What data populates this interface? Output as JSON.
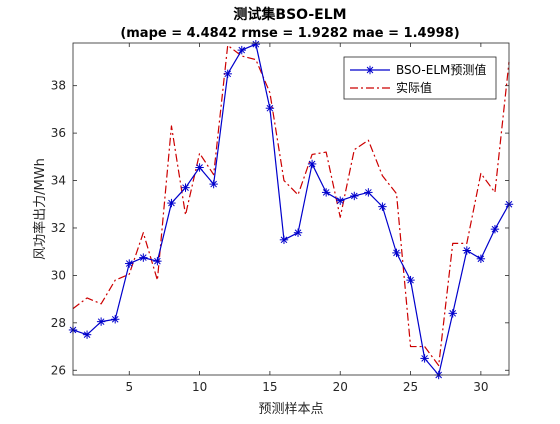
{
  "chart_data": {
    "type": "line",
    "title": "测试集BSO-ELM",
    "subtitle": "(mape = 4.4842 rmse = 1.9282 mae = 1.4998)",
    "xlabel": "预测样本点",
    "ylabel": "风功率出力/MWh",
    "xlim": [
      1,
      32
    ],
    "ylim": [
      25.8,
      39.8
    ],
    "xticks": [
      5,
      10,
      15,
      20,
      25,
      30
    ],
    "yticks": [
      26,
      28,
      30,
      32,
      34,
      36,
      38
    ],
    "grid": false,
    "legend_position": "top-right",
    "x": [
      1,
      2,
      3,
      4,
      5,
      6,
      7,
      8,
      9,
      10,
      11,
      12,
      13,
      14,
      15,
      16,
      17,
      18,
      19,
      20,
      21,
      22,
      23,
      24,
      25,
      26,
      27,
      28,
      29,
      30,
      31,
      32
    ],
    "series": [
      {
        "name": "BSO-ELM预测值",
        "color": "#0000cc",
        "line_style": "solid",
        "marker": "asterisk",
        "values": [
          27.7,
          27.5,
          28.05,
          28.15,
          30.5,
          30.75,
          30.6,
          33.05,
          33.7,
          34.55,
          33.85,
          38.5,
          39.5,
          39.75,
          37.05,
          31.5,
          31.8,
          34.7,
          33.5,
          33.15,
          33.35,
          33.5,
          32.9,
          30.95,
          29.8,
          26.5,
          25.8,
          28.4,
          31.05,
          30.7,
          31.95,
          33.0
        ]
      },
      {
        "name": "实际值",
        "color": "#cc0000",
        "line_style": "dashdot",
        "marker": "none",
        "values": [
          28.6,
          29.05,
          28.8,
          29.8,
          30.05,
          31.8,
          29.8,
          36.3,
          32.55,
          35.15,
          34.25,
          39.7,
          39.25,
          39.1,
          37.7,
          34.0,
          33.4,
          35.1,
          35.2,
          32.45,
          35.3,
          35.7,
          34.2,
          33.45,
          27.0,
          27.0,
          26.2,
          31.35,
          31.35,
          34.3,
          33.5,
          39.0
        ]
      }
    ]
  }
}
